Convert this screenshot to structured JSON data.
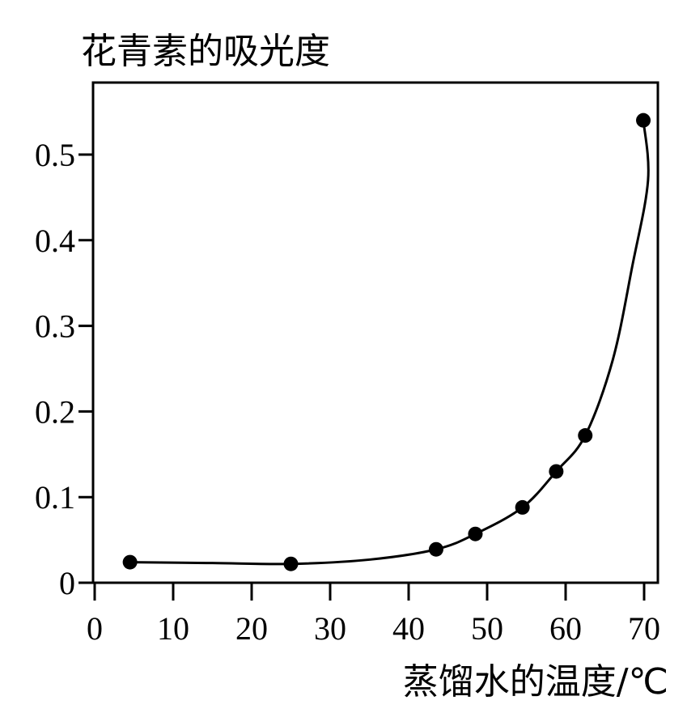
{
  "chart_data": {
    "type": "scatter",
    "ylabel": "花青素的吸光度",
    "xlabel": "蒸馏水的温度/℃",
    "xlim": [
      0,
      72
    ],
    "ylim": [
      0,
      0.58
    ],
    "xticks": [
      "0",
      "10",
      "20",
      "30",
      "40",
      "50",
      "60",
      "70"
    ],
    "yticks": [
      "0",
      "0.1",
      "0.2",
      "0.3",
      "0.4",
      "0.5"
    ],
    "xtick_values": [
      0,
      10,
      20,
      30,
      40,
      50,
      60,
      70
    ],
    "ytick_values": [
      0,
      0.1,
      0.2,
      0.3,
      0.4,
      0.5
    ],
    "points": [
      {
        "x": 4.5,
        "y": 0.024
      },
      {
        "x": 25,
        "y": 0.022
      },
      {
        "x": 43.5,
        "y": 0.039
      },
      {
        "x": 48.5,
        "y": 0.057
      },
      {
        "x": 54.5,
        "y": 0.088
      },
      {
        "x": 58.8,
        "y": 0.13
      },
      {
        "x": 62.5,
        "y": 0.172
      },
      {
        "x": 69.9,
        "y": 0.54
      }
    ],
    "trend_curve": [
      {
        "x": 4.5,
        "y": 0.024
      },
      {
        "x": 15,
        "y": 0.023
      },
      {
        "x": 25,
        "y": 0.022
      },
      {
        "x": 35,
        "y": 0.027
      },
      {
        "x": 43.5,
        "y": 0.039
      },
      {
        "x": 48.5,
        "y": 0.057
      },
      {
        "x": 54.5,
        "y": 0.088
      },
      {
        "x": 58.8,
        "y": 0.13
      },
      {
        "x": 62.5,
        "y": 0.172
      },
      {
        "x": 66,
        "y": 0.26
      },
      {
        "x": 68.5,
        "y": 0.37
      },
      {
        "x": 70.5,
        "y": 0.47
      },
      {
        "x": 69.9,
        "y": 0.54
      }
    ],
    "grid": false,
    "legend": "none"
  }
}
